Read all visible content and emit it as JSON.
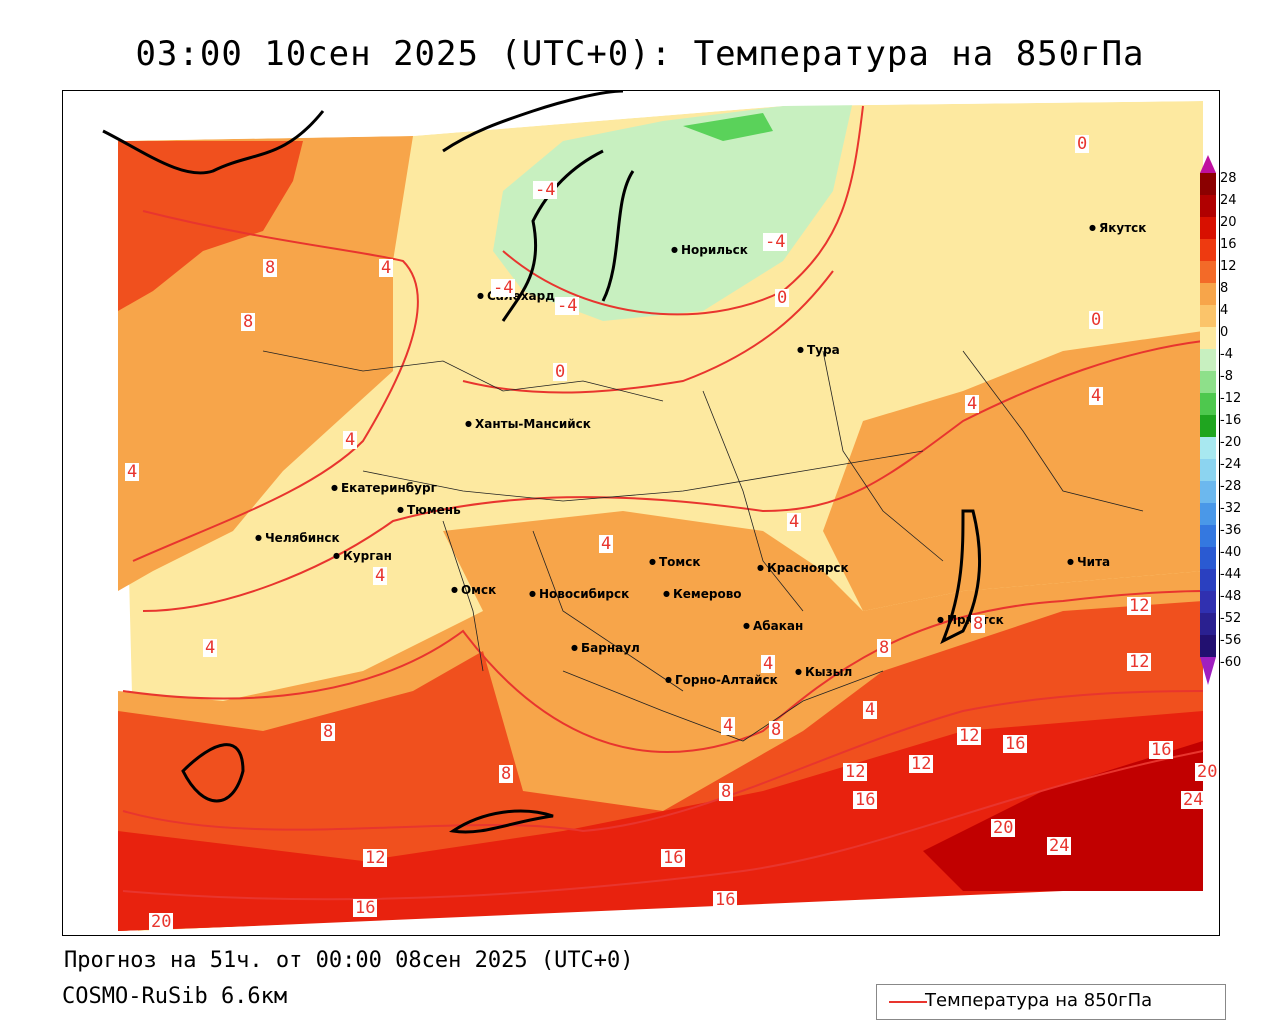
{
  "title": "03:00 10сен 2025 (UTC+0): Температура на 850гПа",
  "forecast_line": "Прогноз на 51ч. от 00:00 08сен 2025 (UTC+0)",
  "model_line": "COSMO-RuSib 6.6км",
  "legend": {
    "label": "Температура на 850гПа",
    "color": "#e8352e"
  },
  "colors": {
    "warm_dark": "#c10000",
    "warm_red": "#e8220e",
    "warm_orange_red": "#f0501e",
    "warm_orange": "#f7a54a",
    "light_orange": "#fbc46a",
    "pale_yellow": "#fde9a0",
    "pale_green": "#c8f0c0",
    "green": "#5ad25a",
    "isoline": "#e8352e"
  },
  "color_scale": {
    "ticks": [
      "28",
      "24",
      "20",
      "16",
      "12",
      "8",
      "4",
      "0",
      "-4",
      "-8",
      "-12",
      "-16",
      "-20",
      "-24",
      "-28",
      "-32",
      "-36",
      "-40",
      "-44",
      "-48",
      "-52",
      "-56",
      "-60"
    ]
  },
  "cities": [
    {
      "name": "Якутск"
    },
    {
      "name": "Норильск"
    },
    {
      "name": "Салехард"
    },
    {
      "name": "Тура"
    },
    {
      "name": "Ханты-Мансийск"
    },
    {
      "name": "Екатеринбург"
    },
    {
      "name": "Тюмень"
    },
    {
      "name": "Челябинск"
    },
    {
      "name": "Курган"
    },
    {
      "name": "Омск"
    },
    {
      "name": "Томск"
    },
    {
      "name": "Красноярск"
    },
    {
      "name": "Новосибирск"
    },
    {
      "name": "Кемерово"
    },
    {
      "name": "Абакан"
    },
    {
      "name": "Барнаул"
    },
    {
      "name": "Горно-Алтайск"
    },
    {
      "name": "Кызыл"
    },
    {
      "name": "Иркутск"
    },
    {
      "name": "Чита"
    }
  ],
  "isoline_labels": [
    "0",
    "-4",
    "-4",
    "-4",
    "-4",
    "0",
    "0",
    "0",
    "8",
    "4",
    "8",
    "4",
    "4",
    "4",
    "4",
    "4",
    "4",
    "4",
    "4",
    "4",
    "8",
    "8",
    "4",
    "4",
    "8",
    "8",
    "8",
    "8",
    "12",
    "12",
    "16",
    "12",
    "12",
    "12",
    "16",
    "16",
    "20",
    "20",
    "24",
    "24",
    "12",
    "16",
    "16",
    "20",
    "16"
  ]
}
